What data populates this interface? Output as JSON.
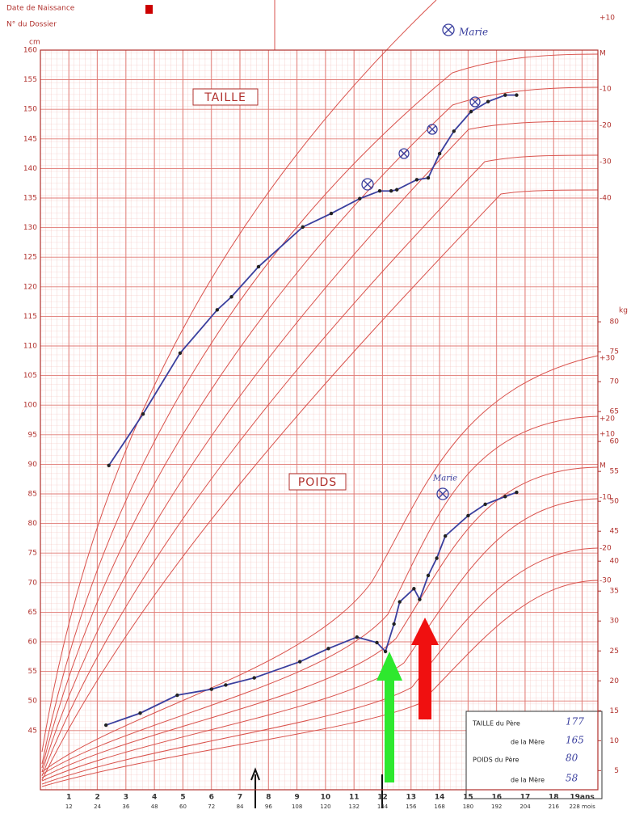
{
  "header": {
    "birth_date_label": "Date de Naissance",
    "file_label": "N° du Dossier"
  },
  "chart_data": {
    "type": "line",
    "y_label": "cm",
    "y2_label": "kg",
    "xlim": [
      0,
      19.55
    ],
    "ylim": [
      35,
      160
    ],
    "y2lim": [
      1.8,
      125.4
    ],
    "grid": true,
    "xticks": [
      1,
      2,
      3,
      4,
      5,
      6,
      7,
      8,
      9,
      10,
      11,
      12,
      13,
      14,
      15,
      16,
      17,
      18,
      {
        "value": 19,
        "label": "19ans"
      }
    ],
    "month_ticks": [
      {
        "value": 1,
        "label": "12"
      },
      {
        "value": 2,
        "label": "24"
      },
      {
        "value": 3,
        "label": "36"
      },
      {
        "value": 4,
        "label": "48"
      },
      {
        "value": 5,
        "label": "60"
      },
      {
        "value": 6,
        "label": "72"
      },
      {
        "value": 7,
        "label": "84"
      },
      {
        "value": 8,
        "label": "96"
      },
      {
        "value": 9,
        "label": "108"
      },
      {
        "value": 10,
        "label": "120"
      },
      {
        "value": 11,
        "label": "132"
      },
      {
        "value": 12,
        "label": "144"
      },
      {
        "value": 13,
        "label": "156"
      },
      {
        "value": 14,
        "label": "168"
      },
      {
        "value": 15,
        "label": "180"
      },
      {
        "value": 16,
        "label": "192"
      },
      {
        "value": 17,
        "label": "204"
      },
      {
        "value": 18,
        "label": "216"
      },
      {
        "value": 19,
        "label": "228 mois"
      }
    ],
    "yticks": [
      45,
      50,
      55,
      60,
      65,
      70,
      75,
      80,
      85,
      90,
      95,
      100,
      105,
      110,
      115,
      120,
      125,
      130,
      135,
      140,
      145,
      150,
      155,
      160
    ],
    "y2ticks": [
      5,
      10,
      15,
      20,
      25,
      30,
      35,
      40,
      45,
      50,
      55,
      60,
      65,
      70,
      75,
      80
    ],
    "series": [
      {
        "name": "TAILLE",
        "color": "#3a3f9e",
        "x": [
          2.4,
          3.6,
          4.9,
          6.2,
          6.7,
          7.65,
          9.2,
          10.2,
          11.2,
          11.9,
          12.3,
          12.5,
          13.2,
          13.6,
          14.0,
          14.5,
          15.1,
          15.7,
          16.3,
          16.7
        ],
        "values": [
          89.8,
          98.5,
          108.8,
          116.1,
          118.3,
          123.4,
          130.1,
          132.4,
          134.9,
          136.2,
          136.2,
          136.4,
          138.1,
          138.4,
          142.5,
          146.3,
          149.6,
          151.3,
          152.4,
          152.4
        ]
      },
      {
        "name": "POIDS",
        "color": "#3a3f9e",
        "axis": "y2",
        "x": [
          2.3,
          3.5,
          4.8,
          6.0,
          6.5,
          7.5,
          9.1,
          10.1,
          11.1,
          11.8,
          12.1,
          12.4,
          12.6,
          13.1,
          13.3,
          13.6,
          13.9,
          14.2,
          15.0,
          15.6,
          16.3,
          16.7
        ],
        "values": [
          12.6,
          14.6,
          17.6,
          18.6,
          19.3,
          20.5,
          23.2,
          25.4,
          27.3,
          26.4,
          24.9,
          29.5,
          33.2,
          35.4,
          33.6,
          37.6,
          40.5,
          44.2,
          47.6,
          49.5,
          50.8,
          51.5
        ]
      }
    ],
    "height_curve_labels": [
      "+10",
      "M",
      "-10",
      "-20",
      "-30",
      "-40"
    ],
    "weight_curve_labels": [
      "+30",
      "+20",
      "+10",
      "M",
      "-10",
      "-20",
      "-30"
    ],
    "annotations": [
      "Marie",
      "Marie"
    ]
  },
  "parents": {
    "rows": [
      [
        "TAILLE du Père",
        "177"
      ],
      [
        "de la Mère",
        "165"
      ],
      [
        "POIDS du Père",
        "80"
      ],
      [
        "de la Mère",
        "58"
      ]
    ]
  }
}
